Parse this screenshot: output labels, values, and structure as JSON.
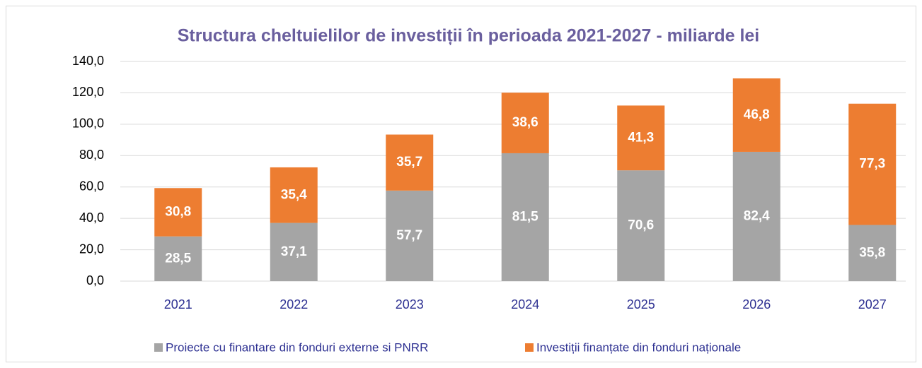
{
  "chart_data": {
    "type": "stacked_bar",
    "title": "Structura cheltuielilor de investiții în perioada 2021-2027 - miliarde lei",
    "categories": [
      "2021",
      "2022",
      "2023",
      "2024",
      "2025",
      "2026",
      "2027"
    ],
    "series": [
      {
        "name": "Proiecte cu finantare din fonduri externe si PNRR",
        "color": "#a5a5a5",
        "values": [
          28.5,
          37.1,
          57.7,
          81.5,
          70.6,
          82.4,
          35.8
        ],
        "value_labels": [
          "28,5",
          "37,1",
          "57,7",
          "81,5",
          "70,6",
          "82,4",
          "35,8"
        ]
      },
      {
        "name": "Investiții finanțate din fonduri naționale",
        "color": "#ed7d31",
        "values": [
          30.8,
          35.4,
          35.7,
          38.6,
          41.3,
          46.8,
          77.3
        ],
        "value_labels": [
          "30,8",
          "35,4",
          "35,7",
          "38,6",
          "41,3",
          "46,8",
          "77,3"
        ]
      }
    ],
    "ylim": [
      0,
      140
    ],
    "yticks": [
      {
        "value": 0,
        "label": "0,0"
      },
      {
        "value": 20,
        "label": "20,0"
      },
      {
        "value": 40,
        "label": "40,0"
      },
      {
        "value": 60,
        "label": "60,0"
      },
      {
        "value": 80,
        "label": "80,0"
      },
      {
        "value": 100,
        "label": "100,0"
      },
      {
        "value": 120,
        "label": "120,0"
      },
      {
        "value": 140,
        "label": "140,0"
      }
    ],
    "grid": true,
    "legend": "bottom"
  }
}
